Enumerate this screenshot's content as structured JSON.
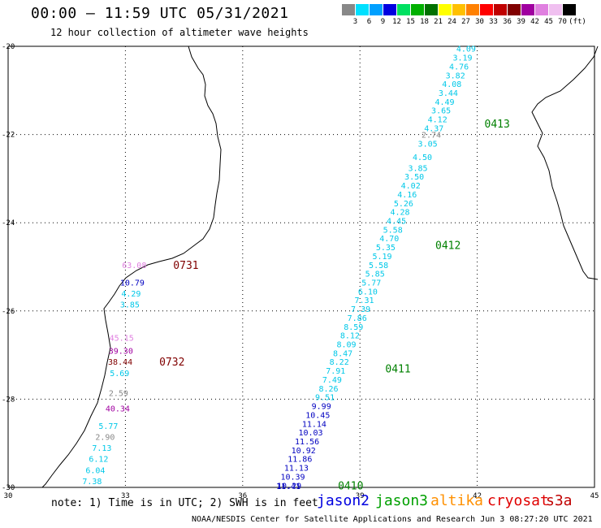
{
  "title": "00:00 – 11:59 UTC 05/31/2021",
  "subtitle": "12 hour collection of altimeter wave heights",
  "legend": {
    "unit": "(ft)",
    "bins": [
      {
        "label": "3",
        "color": "#888888"
      },
      {
        "label": "6",
        "color": "#00e0ff"
      },
      {
        "label": "9",
        "color": "#00a0ff"
      },
      {
        "label": "12",
        "color": "#0000e0"
      },
      {
        "label": "15",
        "color": "#00e060"
      },
      {
        "label": "18",
        "color": "#00b000"
      },
      {
        "label": "21",
        "color": "#007000"
      },
      {
        "label": "24",
        "color": "#ffff00"
      },
      {
        "label": "27",
        "color": "#ffc000"
      },
      {
        "label": "30",
        "color": "#ff8000"
      },
      {
        "label": "33",
        "color": "#ff0000"
      },
      {
        "label": "36",
        "color": "#c00000"
      },
      {
        "label": "39",
        "color": "#800000"
      },
      {
        "label": "42",
        "color": "#a000a0"
      },
      {
        "label": "45",
        "color": "#e080e0"
      },
      {
        "label": "70",
        "color": "#f0c0f0"
      },
      {
        "label": "",
        "color": "#000000"
      }
    ]
  },
  "axes": {
    "lon_ticks": [
      "30",
      "33",
      "36",
      "39",
      "42",
      "45"
    ],
    "lat_ticks": [
      "-20",
      "-22",
      "-24",
      "-26",
      "-28",
      "-30"
    ],
    "lon_range": [
      30,
      45
    ],
    "lat_range": [
      -30,
      -20
    ]
  },
  "tracks": [
    {
      "id": "east",
      "points": [
        {
          "lat": -20.05,
          "v": "4.09",
          "c": "#00c8e8"
        },
        {
          "lat": -20.25,
          "v": "3.19",
          "c": "#00c8e8"
        },
        {
          "lat": -20.45,
          "v": "4.76",
          "c": "#00c8e8"
        },
        {
          "lat": -20.65,
          "v": "3.82",
          "c": "#00c8e8"
        },
        {
          "lat": -20.85,
          "v": "4.08",
          "c": "#00c8e8"
        },
        {
          "lat": -21.05,
          "v": "3.44",
          "c": "#00c8e8"
        },
        {
          "lat": -21.25,
          "v": "4.49",
          "c": "#00c8e8"
        },
        {
          "lat": -21.45,
          "v": "3.65",
          "c": "#00c8e8"
        },
        {
          "lat": -21.65,
          "v": "4.12",
          "c": "#00c8e8"
        },
        {
          "lat": -21.85,
          "v": "4.37",
          "c": "#00c8e8"
        },
        {
          "lat": -22.0,
          "v": "2.74",
          "c": "#888888"
        },
        {
          "lat": -22.2,
          "v": "3.05",
          "c": "#00c8e8"
        },
        {
          "lat": -22.5,
          "v": "4.50",
          "c": "#00c8e8"
        },
        {
          "lat": -22.75,
          "v": "3.85",
          "c": "#00c8e8"
        },
        {
          "lat": -22.95,
          "v": "3.50",
          "c": "#00c8e8"
        },
        {
          "lat": -23.15,
          "v": "4.02",
          "c": "#00c8e8"
        },
        {
          "lat": -23.35,
          "v": "4.16",
          "c": "#00c8e8"
        },
        {
          "lat": -23.55,
          "v": "5.26",
          "c": "#00c8e8"
        },
        {
          "lat": -23.75,
          "v": "4.28",
          "c": "#00c8e8"
        },
        {
          "lat": -23.95,
          "v": "4.45",
          "c": "#00c8e8"
        },
        {
          "lat": -24.15,
          "v": "5.58",
          "c": "#00c8e8"
        },
        {
          "lat": -24.35,
          "v": "4.70",
          "c": "#00c8e8"
        },
        {
          "lat": -24.55,
          "v": "5.35",
          "c": "#00c8e8"
        },
        {
          "lat": -24.75,
          "v": "5.19",
          "c": "#00c8e8"
        },
        {
          "lat": -24.95,
          "v": "5.58",
          "c": "#00c8e8"
        },
        {
          "lat": -25.15,
          "v": "5.85",
          "c": "#00c8e8"
        },
        {
          "lat": -25.35,
          "v": "5.77",
          "c": "#00c8e8"
        },
        {
          "lat": -25.55,
          "v": "6.10",
          "c": "#00c8e8"
        },
        {
          "lat": -25.75,
          "v": "7.31",
          "c": "#00c8e8"
        },
        {
          "lat": -25.95,
          "v": "7.39",
          "c": "#00c8e8"
        },
        {
          "lat": -26.15,
          "v": "7.86",
          "c": "#00c8e8"
        },
        {
          "lat": -26.35,
          "v": "8.59",
          "c": "#00c8e8"
        },
        {
          "lat": -26.55,
          "v": "8.12",
          "c": "#00c8e8"
        },
        {
          "lat": -26.75,
          "v": "8.09",
          "c": "#00c8e8"
        },
        {
          "lat": -26.95,
          "v": "8.47",
          "c": "#00c8e8"
        },
        {
          "lat": -27.15,
          "v": "8.22",
          "c": "#00c8e8"
        },
        {
          "lat": -27.35,
          "v": "7.91",
          "c": "#00c8e8"
        },
        {
          "lat": -27.55,
          "v": "7.49",
          "c": "#00c8e8"
        },
        {
          "lat": -27.75,
          "v": "8.26",
          "c": "#00c8e8"
        },
        {
          "lat": -27.95,
          "v": "9.51",
          "c": "#00c8e8"
        },
        {
          "lat": -28.15,
          "v": "9.99",
          "c": "#0000c0"
        },
        {
          "lat": -28.35,
          "v": "10.45",
          "c": "#0000c0"
        },
        {
          "lat": -28.55,
          "v": "11.14",
          "c": "#0000c0"
        },
        {
          "lat": -28.75,
          "v": "10.03",
          "c": "#0000c0"
        },
        {
          "lat": -28.95,
          "v": "11.56",
          "c": "#0000c0"
        },
        {
          "lat": -29.15,
          "v": "10.92",
          "c": "#0000c0"
        },
        {
          "lat": -29.35,
          "v": "11.86",
          "c": "#0000c0"
        },
        {
          "lat": -29.55,
          "v": "11.13",
          "c": "#0000c0"
        },
        {
          "lat": -29.75,
          "v": "10.39",
          "c": "#0000c0"
        },
        {
          "lat": -29.95,
          "v": "10.29",
          "c": "#0000c0"
        },
        {
          "lat": -30.0,
          "v": "11.41",
          "c": "#0000c0"
        }
      ],
      "times": [
        {
          "label": "0413",
          "lat": -21.75,
          "c": "#008000"
        },
        {
          "label": "0412",
          "lat": -24.5,
          "c": "#008000"
        },
        {
          "label": "0411",
          "lat": -27.3,
          "c": "#008000"
        },
        {
          "label": "0410",
          "lat": -29.95,
          "c": "#008000"
        }
      ]
    },
    {
      "id": "coast",
      "points": [
        {
          "lat": -24.95,
          "v": "63.08",
          "c": "#e080e0"
        },
        {
          "lat": -25.35,
          "v": "10.79",
          "c": "#0000c0"
        },
        {
          "lat": -25.6,
          "v": "4.29",
          "c": "#00c8e8"
        },
        {
          "lat": -25.85,
          "v": "3.85",
          "c": "#00c8e8"
        },
        {
          "lat": -26.6,
          "v": "45.15",
          "c": "#e080e0"
        },
        {
          "lat": -26.9,
          "v": "39.30",
          "c": "#a000a0"
        },
        {
          "lat": -27.15,
          "v": "38.44",
          "c": "#800000"
        },
        {
          "lat": -27.4,
          "v": "5.69",
          "c": "#00c8e8"
        },
        {
          "lat": -27.85,
          "v": "2.59",
          "c": "#888888"
        },
        {
          "lat": -28.2,
          "v": "40.34",
          "c": "#a000a0"
        },
        {
          "lat": -28.6,
          "v": "5.77",
          "c": "#00c8e8"
        },
        {
          "lat": -28.85,
          "v": "2.90",
          "c": "#888888"
        },
        {
          "lat": -29.1,
          "v": "7.13",
          "c": "#00c8e8"
        },
        {
          "lat": -29.35,
          "v": "6.12",
          "c": "#00c8e8"
        },
        {
          "lat": -29.6,
          "v": "6.04",
          "c": "#00c8e8"
        },
        {
          "lat": -29.85,
          "v": "7.38",
          "c": "#00c8e8"
        }
      ],
      "times": [
        {
          "label": "0731",
          "lat": -24.95,
          "c": "#800000"
        },
        {
          "label": "0732",
          "lat": -27.15,
          "c": "#800000"
        }
      ]
    }
  ],
  "note": "note: 1) Time is in UTC; 2) SWH is in feet",
  "satellites": [
    {
      "name": "jason2",
      "color": "#0000e0"
    },
    {
      "name": "jason3",
      "color": "#00a000"
    },
    {
      "name": "altika",
      "color": "#ff9000"
    },
    {
      "name": "cryosat",
      "color": "#e00000"
    },
    {
      "name": "s3a",
      "color": "#c00000"
    }
  ],
  "credit": "NOAA/NESDIS Center for Satellite Applications and Research   Jun  3 08:27:20 UTC 2021"
}
